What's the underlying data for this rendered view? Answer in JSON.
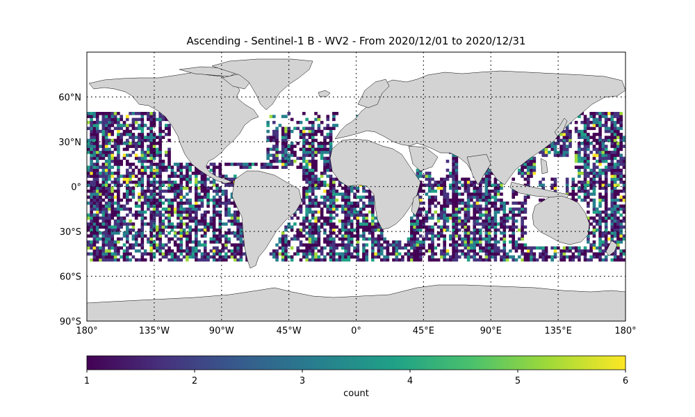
{
  "title": "Ascending - Sentinel-1 B - WV2 - From 2020/12/01 to 2020/12/31",
  "map": {
    "projection": "PlateCarree",
    "extent": {
      "lon": [
        -180,
        180
      ],
      "lat": [
        -90,
        90
      ]
    },
    "land_color": "#d3d3d3",
    "coastline_color": "#000000",
    "gridlines": {
      "style": "dotted",
      "color": "#000000"
    },
    "lat_ticks": [
      {
        "value": 60,
        "label": "60°N"
      },
      {
        "value": 30,
        "label": "30°N"
      },
      {
        "value": 0,
        "label": "0°"
      },
      {
        "value": -30,
        "label": "30°S"
      },
      {
        "value": -60,
        "label": "60°S"
      },
      {
        "value": -90,
        "label": "90°S"
      }
    ],
    "lon_ticks": [
      {
        "value": -180,
        "label": "180°"
      },
      {
        "value": -135,
        "label": "135°W"
      },
      {
        "value": -90,
        "label": "90°W"
      },
      {
        "value": -45,
        "label": "45°W"
      },
      {
        "value": 0,
        "label": "0°"
      },
      {
        "value": 45,
        "label": "45°E"
      },
      {
        "value": 90,
        "label": "90°E"
      },
      {
        "value": 135,
        "label": "135°E"
      },
      {
        "value": 180,
        "label": "180°"
      }
    ]
  },
  "chart_data": {
    "type": "heatmap",
    "title": "Ascending - Sentinel-1 B - WV2 - From 2020/12/01 to 2020/12/31",
    "colormap": "viridis",
    "value_range": [
      1,
      6
    ],
    "colorbar": {
      "label": "count",
      "ticks": [
        1,
        2,
        3,
        4,
        5,
        6
      ],
      "orientation": "horizontal"
    },
    "cell_size_deg": {
      "lon": 2,
      "lat": 2
    },
    "coverage": {
      "lat_range": [
        -50,
        50
      ]
    },
    "cells": [
      {
        "lon": -170,
        "lat": 10,
        "value": 2
      },
      {
        "lon": -140,
        "lat": -20,
        "value": 3
      },
      {
        "lon": -40,
        "lat": 20,
        "value": 2
      },
      {
        "lon": 80,
        "lat": -30,
        "value": 3
      },
      {
        "lon": 160,
        "lat": 20,
        "value": 4
      },
      {
        "lon": 100,
        "lat": -48,
        "value": 4
      }
    ]
  },
  "colors": {
    "viridis": [
      "#440154",
      "#46327e",
      "#365c8d",
      "#277f8e",
      "#1fa187",
      "#4ac16d",
      "#a0da39",
      "#fde725"
    ]
  }
}
